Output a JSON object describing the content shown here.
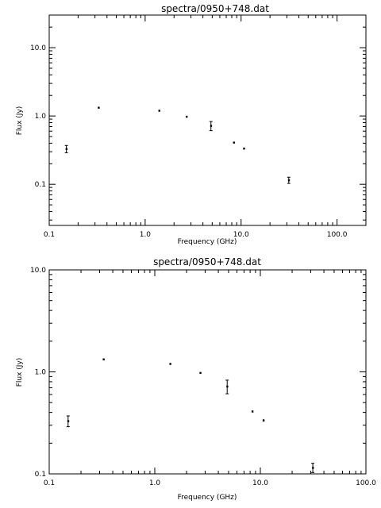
{
  "chart_data": [
    {
      "type": "scatter",
      "title": "spectra/0950+748.dat",
      "xlabel": "Frequency (GHz)",
      "ylabel": "Flux (Jy)",
      "xscale": "log",
      "yscale": "log",
      "xlim": [
        0.1,
        200
      ],
      "ylim": [
        0.025,
        30
      ],
      "xticks": [
        0.1,
        1.0,
        10.0,
        100.0
      ],
      "xtick_labels": [
        "0.1",
        "1.0",
        "10.0",
        "100.0"
      ],
      "yticks": [
        0.1,
        1.0,
        10.0
      ],
      "ytick_labels": [
        "0.1",
        "1.0",
        "10.0"
      ],
      "grid": false,
      "series": [
        {
          "x": [
            0.151,
            0.327,
            1.4,
            2.7,
            4.85,
            8.4,
            10.7,
            31.4
          ],
          "y": [
            0.33,
            1.33,
            1.2,
            0.98,
            0.72,
            0.41,
            0.335,
            0.115
          ],
          "yerr": [
            0.04,
            0.02,
            0.02,
            0.01,
            0.11,
            0.01,
            0.01,
            0.012
          ]
        }
      ]
    },
    {
      "type": "scatter",
      "title": "spectra/0950+748.dat",
      "xlabel": "Frequency (GHz)",
      "ylabel": "Flux (Jy)",
      "xscale": "log",
      "yscale": "log",
      "xlim": [
        0.1,
        100
      ],
      "ylim": [
        0.1,
        10
      ],
      "xticks": [
        0.1,
        1.0,
        10.0,
        100.0
      ],
      "xtick_labels": [
        "0.1",
        "1.0",
        "10.0",
        "100.0"
      ],
      "yticks": [
        0.1,
        1.0,
        10.0
      ],
      "ytick_labels": [
        "0.1",
        "1.0",
        "10.0"
      ],
      "grid": false,
      "series": [
        {
          "x": [
            0.151,
            0.327,
            1.4,
            2.7,
            4.85,
            8.4,
            10.7,
            31.4
          ],
          "y": [
            0.33,
            1.33,
            1.2,
            0.98,
            0.72,
            0.41,
            0.335,
            0.115
          ],
          "yerr": [
            0.04,
            0.02,
            0.02,
            0.01,
            0.11,
            0.01,
            0.01,
            0.012
          ]
        }
      ]
    }
  ]
}
